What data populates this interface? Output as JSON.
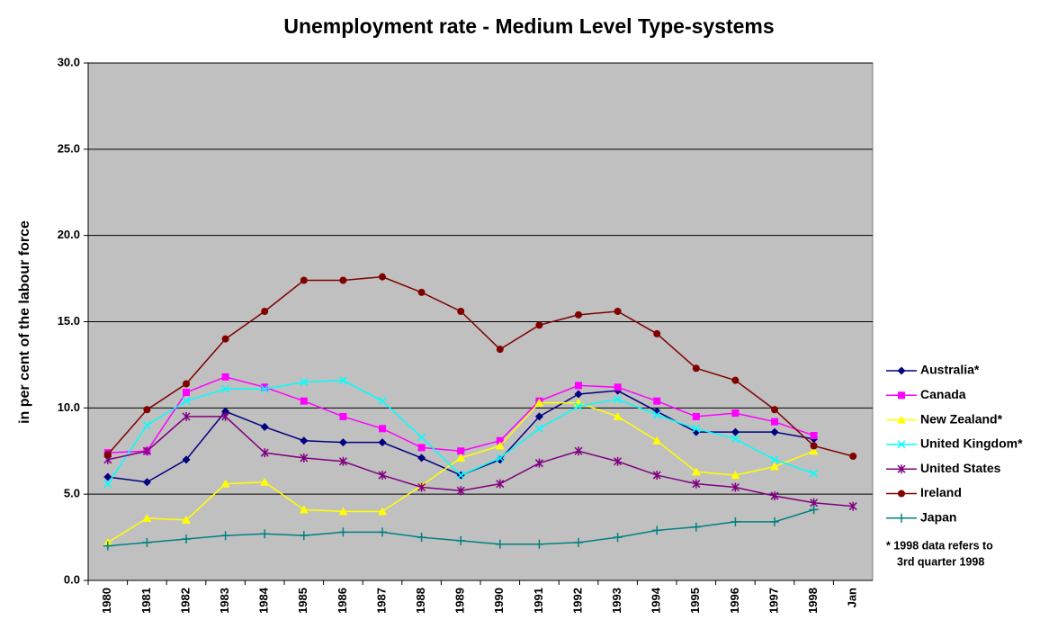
{
  "chart_data": {
    "type": "line",
    "title": "Unemployment rate - Medium Level Type-systems",
    "y_label": "in per cent of the labour force",
    "categories": [
      "1980",
      "1981",
      "1982",
      "1983",
      "1984",
      "1985",
      "1986",
      "1987",
      "1988",
      "1989",
      "1990",
      "1991",
      "1992",
      "1993",
      "1994",
      "1995",
      "1996",
      "1997",
      "1998",
      "Jan"
    ],
    "ylim": [
      0,
      30
    ],
    "yticks": [
      {
        "value": 0,
        "label": "0.0"
      },
      {
        "value": 5,
        "label": "5.0"
      },
      {
        "value": 10,
        "label": "10.0"
      },
      {
        "value": 15,
        "label": "15.0"
      },
      {
        "value": 20,
        "label": "20.0"
      },
      {
        "value": 25,
        "label": "25.0"
      },
      {
        "value": 30,
        "label": "30.0"
      }
    ],
    "grid": true,
    "plot_background": "#c0c0c0",
    "legend_position": "right",
    "note": [
      "* 1998 data refers to",
      "3rd quarter 1998"
    ],
    "series": [
      {
        "name": "Australia*",
        "color": "#000080",
        "marker": "diamond",
        "values": [
          6.0,
          5.7,
          7.0,
          9.8,
          8.9,
          8.1,
          8.0,
          8.0,
          7.1,
          6.1,
          7.0,
          9.5,
          10.8,
          11.0,
          9.8,
          8.6,
          8.6,
          8.6,
          8.2,
          null
        ]
      },
      {
        "name": "Canada",
        "color": "#ff00ff",
        "marker": "square",
        "values": [
          7.4,
          7.5,
          10.9,
          11.8,
          11.2,
          10.4,
          9.5,
          8.8,
          7.7,
          7.5,
          8.1,
          10.4,
          11.3,
          11.2,
          10.4,
          9.5,
          9.7,
          9.2,
          8.4,
          null
        ]
      },
      {
        "name": "New Zealand*",
        "color": "#ffff00",
        "marker": "triangle",
        "values": [
          2.2,
          3.6,
          3.5,
          5.6,
          5.7,
          4.1,
          4.0,
          4.0,
          5.5,
          7.1,
          7.8,
          10.3,
          10.3,
          9.5,
          8.1,
          6.3,
          6.1,
          6.6,
          7.5,
          null
        ]
      },
      {
        "name": "United Kingdom*",
        "color": "#00ffff",
        "marker": "x",
        "values": [
          5.6,
          9.0,
          10.4,
          11.1,
          11.1,
          11.5,
          11.6,
          10.4,
          8.3,
          6.1,
          7.1,
          8.8,
          10.1,
          10.5,
          9.6,
          8.8,
          8.2,
          7.0,
          6.2,
          null
        ]
      },
      {
        "name": "United States",
        "color": "#800080",
        "marker": "star",
        "values": [
          7.0,
          7.5,
          9.5,
          9.5,
          7.4,
          7.1,
          6.9,
          6.1,
          5.4,
          5.2,
          5.6,
          6.8,
          7.5,
          6.9,
          6.1,
          5.6,
          5.4,
          4.9,
          4.5,
          4.3
        ]
      },
      {
        "name": "Ireland",
        "color": "#800000",
        "marker": "circle",
        "values": [
          7.3,
          9.9,
          11.4,
          14.0,
          15.6,
          17.4,
          17.4,
          17.6,
          16.7,
          15.6,
          13.4,
          14.8,
          15.4,
          15.6,
          14.3,
          12.3,
          11.6,
          9.9,
          7.8,
          7.2
        ]
      },
      {
        "name": "Japan",
        "color": "#008080",
        "marker": "plus",
        "values": [
          2.0,
          2.2,
          2.4,
          2.6,
          2.7,
          2.6,
          2.8,
          2.8,
          2.5,
          2.3,
          2.1,
          2.1,
          2.2,
          2.5,
          2.9,
          3.1,
          3.4,
          3.4,
          4.1,
          null
        ]
      }
    ]
  }
}
